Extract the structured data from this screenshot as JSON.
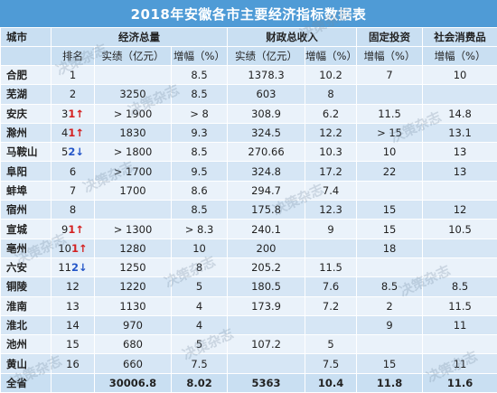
{
  "title": "2018年安徽各市主要经济指标数据表",
  "headers": {
    "city": "城市",
    "gdp": "经济总量",
    "fiscal": "财政总收入",
    "invest": "固定投资",
    "retail": "社会消费品",
    "rank": "排名",
    "actual": "实绩（亿元）",
    "growth": "增幅（%）",
    "fiscal_actual": "实绩（亿元）",
    "fiscal_growth": "增幅（%）",
    "invest_growth": "增幅（%）",
    "retail_growth": "增幅（%）"
  },
  "rows": [
    {
      "city": "合肥",
      "rank": "1",
      "rank_arrow": "",
      "gdp": "",
      "gdp_g": "8.5",
      "fis": "1378.3",
      "fis_g": "10.2",
      "inv": "7",
      "ret": "10"
    },
    {
      "city": "芜湖",
      "rank": "2",
      "rank_arrow": "",
      "gdp": "3250",
      "gdp_g": "8.5",
      "fis": "603",
      "fis_g": "8",
      "inv": "",
      "ret": ""
    },
    {
      "city": "安庆",
      "rank": "3",
      "rank_arrow": "1",
      "arrow_dir": "up",
      "gdp": "> 1900",
      "gdp_g": "> 8",
      "fis": "308.9",
      "fis_g": "6.2",
      "inv": "11.5",
      "ret": "14.8"
    },
    {
      "city": "滁州",
      "rank": "4",
      "rank_arrow": "1",
      "arrow_dir": "up",
      "gdp": "1830",
      "gdp_g": "9.3",
      "fis": "324.5",
      "fis_g": "12.2",
      "inv": "> 15",
      "ret": "13.1"
    },
    {
      "city": "马鞍山",
      "rank": "5",
      "rank_arrow": "2",
      "arrow_dir": "down",
      "gdp": "> 1800",
      "gdp_g": "8.5",
      "fis": "270.66",
      "fis_g": "10.3",
      "inv": "10",
      "ret": "13"
    },
    {
      "city": "阜阳",
      "rank": "6",
      "rank_arrow": "",
      "gdp": "> 1700",
      "gdp_g": "9.5",
      "fis": "324.8",
      "fis_g": "17.2",
      "inv": "22",
      "ret": "13"
    },
    {
      "city": "蚌埠",
      "rank": "7",
      "rank_arrow": "",
      "gdp": "1700",
      "gdp_g": "8.6",
      "fis": "294.7",
      "fis_g": "7.4",
      "inv": "",
      "ret": ""
    },
    {
      "city": "宿州",
      "rank": "8",
      "rank_arrow": "",
      "gdp": "",
      "gdp_g": "8.5",
      "fis": "175.8",
      "fis_g": "12.3",
      "inv": "15",
      "ret": "12"
    },
    {
      "city": "宣城",
      "rank": "9",
      "rank_arrow": "1",
      "arrow_dir": "up",
      "gdp": "> 1300",
      "gdp_g": "> 8.3",
      "fis": "240.1",
      "fis_g": "9",
      "inv": "15",
      "ret": "10.5"
    },
    {
      "city": "亳州",
      "rank": "10",
      "rank_arrow": "1",
      "arrow_dir": "up",
      "gdp": "1280",
      "gdp_g": "10",
      "fis": "200",
      "fis_g": "",
      "inv": "18",
      "ret": ""
    },
    {
      "city": "六安",
      "rank": "11",
      "rank_arrow": "2",
      "arrow_dir": "down",
      "gdp": "1250",
      "gdp_g": "8",
      "fis": "205.2",
      "fis_g": "11.5",
      "inv": "",
      "ret": ""
    },
    {
      "city": "铜陵",
      "rank": "12",
      "rank_arrow": "",
      "gdp": "1220",
      "gdp_g": "5",
      "fis": "180.5",
      "fis_g": "7.6",
      "inv": "8.5",
      "ret": "8.5"
    },
    {
      "city": "淮南",
      "rank": "13",
      "rank_arrow": "",
      "gdp": "1130",
      "gdp_g": "4",
      "fis": "173.9",
      "fis_g": "7.2",
      "inv": "2",
      "ret": "11.5"
    },
    {
      "city": "淮北",
      "rank": "14",
      "rank_arrow": "",
      "gdp": "970",
      "gdp_g": "4",
      "fis": "",
      "fis_g": "",
      "inv": "9",
      "ret": "11"
    },
    {
      "city": "池州",
      "rank": "15",
      "rank_arrow": "",
      "gdp": "680",
      "gdp_g": "5",
      "fis": "107.2",
      "fis_g": "5",
      "inv": "",
      "ret": ""
    },
    {
      "city": "黄山",
      "rank": "16",
      "rank_arrow": "",
      "gdp": "660",
      "gdp_g": "7.5",
      "fis": "",
      "fis_g": "7.5",
      "inv": "15",
      "ret": "11"
    }
  ],
  "total": {
    "city": "全省",
    "gdp": "30006.8",
    "gdp_g": "8.02",
    "fis": "5363",
    "fis_g": "10.4",
    "inv": "11.8",
    "ret": "11.6"
  },
  "watermark": "决策杂志",
  "colors": {
    "header_bar": "#4f9bd6",
    "header_cells": "#c9dff2",
    "row_light": "#eaf2fa",
    "row_dark": "#d6e6f5",
    "up_arrow": "#d42020",
    "down_arrow": "#2456c8"
  }
}
